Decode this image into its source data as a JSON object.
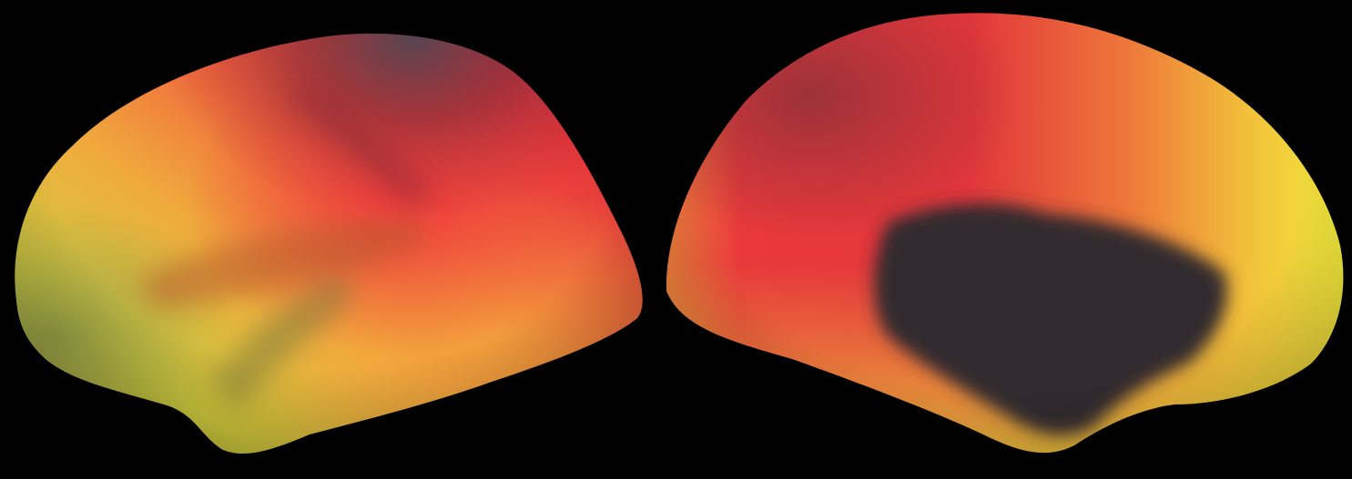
{
  "scene": {
    "background": "#000000",
    "views": [
      {
        "id": "lateral",
        "description_color_scale": [
          "#b4b03c",
          "#e8d23a",
          "#f2a63a",
          "#f06a3a",
          "#e5383a",
          "#b02a35",
          "#6a3a44"
        ]
      },
      {
        "id": "medial",
        "description_color_scale": [
          "#f0ec3a",
          "#f0b43a",
          "#e8723a",
          "#e0303a",
          "#a8283a",
          "#3a3035"
        ]
      }
    ],
    "colors": {
      "yellow_green": "#b7b84a",
      "yellow": "#e9df3a",
      "orange": "#f1983b",
      "red": "#e8393b",
      "dark_red": "#a52a35",
      "slate": "#5a4550",
      "medial_wall": "#332c2f"
    }
  }
}
